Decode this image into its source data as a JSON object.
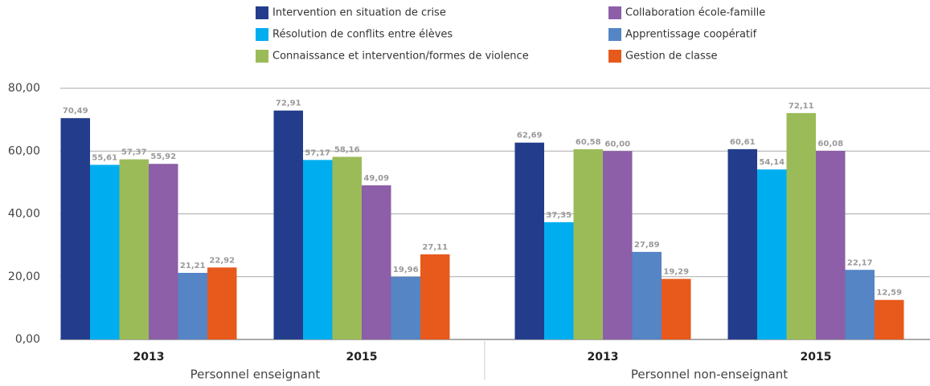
{
  "chart_data": {
    "type": "bar",
    "categories": [
      "2013",
      "2015",
      "2013",
      "2015"
    ],
    "group_labels": [
      "Personnel enseignant",
      "Personnel non-enseignant"
    ],
    "series": [
      {
        "name": "Intervention en situation de crise",
        "color": "#233d8c",
        "values": [
          70.49,
          72.91,
          62.69,
          60.61
        ],
        "value_labels": [
          "70,49",
          "72,91",
          "62,69",
          "60,61"
        ]
      },
      {
        "name": "Résolution de conflits entre élèves",
        "color": "#00aeef",
        "values": [
          55.61,
          57.17,
          37.35,
          54.14
        ],
        "value_labels": [
          "55,61",
          "57,17",
          "37,35",
          "54,14"
        ]
      },
      {
        "name": "Connaissance et intervention/formes de violence",
        "color": "#9bbb59",
        "values": [
          57.37,
          58.16,
          60.58,
          72.11
        ],
        "value_labels": [
          "57,37",
          "58,16",
          "60,58",
          "72,11"
        ]
      },
      {
        "name": "Collaboration école-famille",
        "color": "#8c5fa8",
        "values": [
          55.92,
          49.09,
          60.0,
          60.08
        ],
        "value_labels": [
          "55,92",
          "49,09",
          "60,00",
          "60,08"
        ]
      },
      {
        "name": "Apprentissage coopératif",
        "color": "#5585c5",
        "values": [
          21.21,
          19.96,
          27.89,
          22.17
        ],
        "value_labels": [
          "21,21",
          "19,96",
          "27,89",
          "22,17"
        ]
      },
      {
        "name": "Gestion de classe",
        "color": "#e8591c",
        "values": [
          22.92,
          27.11,
          19.29,
          12.59
        ],
        "value_labels": [
          "22,92",
          "27,11",
          "19,29",
          "12,59"
        ]
      }
    ],
    "ylim": [
      0,
      80
    ],
    "yticks": [
      {
        "value": 0,
        "label": "0,00"
      },
      {
        "value": 20,
        "label": "20,00"
      },
      {
        "value": 40,
        "label": "40,00"
      },
      {
        "value": 60,
        "label": "60,00"
      },
      {
        "value": 80,
        "label": "80,00"
      }
    ],
    "grid": true
  }
}
